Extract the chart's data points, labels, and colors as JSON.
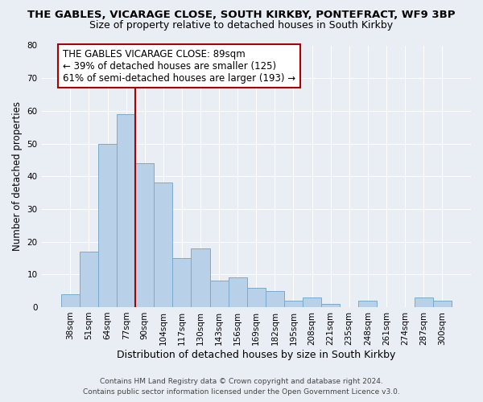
{
  "title": "THE GABLES, VICARAGE CLOSE, SOUTH KIRKBY, PONTEFRACT, WF9 3BP",
  "subtitle": "Size of property relative to detached houses in South Kirkby",
  "xlabel": "Distribution of detached houses by size in South Kirkby",
  "ylabel": "Number of detached properties",
  "footer_line1": "Contains HM Land Registry data © Crown copyright and database right 2024.",
  "footer_line2": "Contains public sector information licensed under the Open Government Licence v3.0.",
  "bar_labels": [
    "38sqm",
    "51sqm",
    "64sqm",
    "77sqm",
    "90sqm",
    "104sqm",
    "117sqm",
    "130sqm",
    "143sqm",
    "156sqm",
    "169sqm",
    "182sqm",
    "195sqm",
    "208sqm",
    "221sqm",
    "235sqm",
    "248sqm",
    "261sqm",
    "274sqm",
    "287sqm",
    "300sqm"
  ],
  "bar_values": [
    4,
    17,
    50,
    59,
    44,
    38,
    15,
    18,
    8,
    9,
    6,
    5,
    2,
    3,
    1,
    0,
    2,
    0,
    0,
    3,
    2
  ],
  "bar_color": "#b8d0e8",
  "bar_edgecolor": "#7aaace",
  "vline_x_index": 3,
  "vline_color": "#aa0000",
  "annotation_title": "THE GABLES VICARAGE CLOSE: 89sqm",
  "annotation_line2": "← 39% of detached houses are smaller (125)",
  "annotation_line3": "61% of semi-detached houses are larger (193) →",
  "annotation_box_facecolor": "#ffffff",
  "annotation_box_edgecolor": "#aa0000",
  "ylim": [
    0,
    80
  ],
  "yticks": [
    0,
    10,
    20,
    30,
    40,
    50,
    60,
    70,
    80
  ],
  "bg_color": "#e8eef4",
  "plot_bg_color": "#e8eef4",
  "title_fontsize": 9.5,
  "subtitle_fontsize": 9,
  "xlabel_fontsize": 9,
  "ylabel_fontsize": 8.5,
  "tick_fontsize": 7.5,
  "annotation_fontsize": 8.5,
  "footer_fontsize": 6.5
}
